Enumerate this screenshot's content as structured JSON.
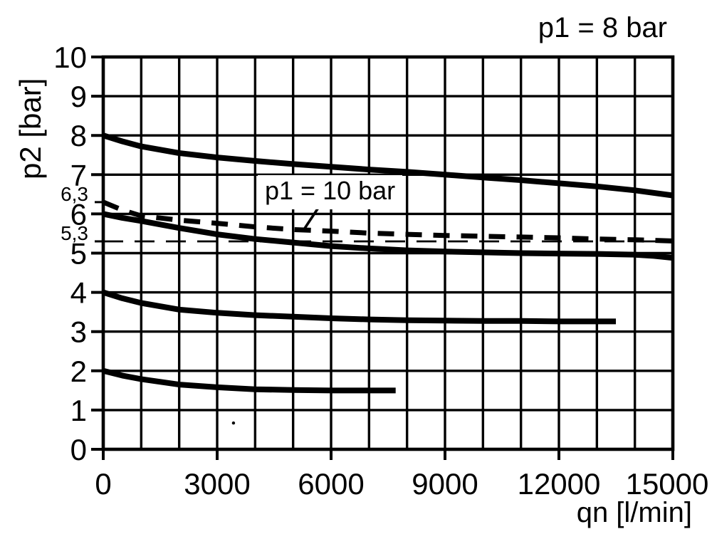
{
  "page": {
    "background": "#ffffff",
    "foreground": "#000000"
  },
  "chart_data": {
    "type": "line",
    "title": "p1 = 8 bar",
    "xlabel": "qn [l/min]",
    "ylabel": "p2 [bar]",
    "xlim": [
      0,
      15000
    ],
    "ylim": [
      0,
      10
    ],
    "grid": "on",
    "legend": "none",
    "x_gridline_step": 1000,
    "y_gridline_step": 1,
    "x_major_ticks": {
      "values": [
        0,
        3000,
        6000,
        9000,
        12000,
        15000
      ],
      "labels": [
        "0",
        "3000",
        "6000",
        "9000",
        "12000",
        "15000"
      ]
    },
    "y_major_ticks": {
      "values": [
        0,
        1,
        2,
        3,
        4,
        5,
        6,
        7,
        8,
        9,
        10
      ],
      "labels": [
        "0",
        "1",
        "2",
        "3",
        "4",
        "5",
        "6",
        "7",
        "8",
        "9",
        "10"
      ]
    },
    "y_special_ticks": [
      {
        "value": 6.3,
        "label": "6,3"
      },
      {
        "value": 5.3,
        "label": "5,3"
      }
    ],
    "reference_line": {
      "p2": 5.3,
      "q_start": 0,
      "q_end": 15000,
      "style": "thin-dashed"
    },
    "annotation": {
      "text": "p1 = 10 bar",
      "center_q": 5960,
      "center_p2": 6.53,
      "leader_from": [
        5700,
        6.21
      ],
      "leader_to": [
        5290,
        5.61
      ]
    },
    "stray_mark": {
      "q": 3430,
      "p2": 0.67
    },
    "series": [
      {
        "id": "curve-p2-8",
        "name": "outlet pressure curve, setting p2 = 8 bar (p1 = 8 bar)",
        "style": "solid-bold",
        "points": [
          [
            0,
            8.0
          ],
          [
            500,
            7.85
          ],
          [
            1000,
            7.72
          ],
          [
            2000,
            7.55
          ],
          [
            3000,
            7.44
          ],
          [
            4000,
            7.35
          ],
          [
            5000,
            7.27
          ],
          [
            6000,
            7.2
          ],
          [
            7000,
            7.13
          ],
          [
            8000,
            7.07
          ],
          [
            9000,
            7.0
          ],
          [
            10000,
            6.93
          ],
          [
            11000,
            6.86
          ],
          [
            12000,
            6.78
          ],
          [
            13000,
            6.7
          ],
          [
            14000,
            6.6
          ],
          [
            15000,
            6.47
          ]
        ]
      },
      {
        "id": "curve-p1-10bar",
        "name": "p1 = 10 bar",
        "style": "dashed-bold",
        "points": [
          [
            0,
            6.3
          ],
          [
            500,
            6.1
          ],
          [
            1000,
            5.95
          ],
          [
            2000,
            5.84
          ],
          [
            3000,
            5.76
          ],
          [
            4000,
            5.67
          ],
          [
            5000,
            5.6
          ],
          [
            6000,
            5.56
          ],
          [
            7000,
            5.51
          ],
          [
            8000,
            5.48
          ],
          [
            9000,
            5.45
          ],
          [
            10000,
            5.43
          ],
          [
            11000,
            5.41
          ],
          [
            12000,
            5.39
          ],
          [
            13000,
            5.36
          ],
          [
            14000,
            5.34
          ],
          [
            15000,
            5.31
          ]
        ]
      },
      {
        "id": "curve-p2-6",
        "name": "outlet pressure curve, setting p2 = 6 bar (p1 = 8 bar)",
        "style": "solid-bold",
        "points": [
          [
            0,
            6.0
          ],
          [
            500,
            5.9
          ],
          [
            1000,
            5.82
          ],
          [
            2000,
            5.64
          ],
          [
            3000,
            5.48
          ],
          [
            4000,
            5.36
          ],
          [
            5000,
            5.27
          ],
          [
            6000,
            5.18
          ],
          [
            7000,
            5.12
          ],
          [
            8000,
            5.07
          ],
          [
            9000,
            5.04
          ],
          [
            10000,
            5.02
          ],
          [
            11000,
            5.0
          ],
          [
            12000,
            4.99
          ],
          [
            13000,
            4.98
          ],
          [
            14000,
            4.96
          ],
          [
            14500,
            4.93
          ],
          [
            15000,
            4.88
          ]
        ]
      },
      {
        "id": "curve-p2-4",
        "name": "outlet pressure curve, setting p2 = 4 bar (p1 = 8 bar)",
        "style": "solid-bold",
        "points": [
          [
            0,
            4.0
          ],
          [
            500,
            3.85
          ],
          [
            1000,
            3.73
          ],
          [
            2000,
            3.56
          ],
          [
            3000,
            3.48
          ],
          [
            4000,
            3.42
          ],
          [
            5000,
            3.38
          ],
          [
            6000,
            3.34
          ],
          [
            7000,
            3.31
          ],
          [
            8000,
            3.29
          ],
          [
            9000,
            3.28
          ],
          [
            10000,
            3.27
          ],
          [
            11000,
            3.27
          ],
          [
            12000,
            3.26
          ],
          [
            13000,
            3.26
          ],
          [
            13500,
            3.26
          ]
        ]
      },
      {
        "id": "curve-p2-2",
        "name": "outlet pressure curve, setting p2 = 2 bar (p1 = 8 bar)",
        "style": "solid-bold",
        "points": [
          [
            0,
            2.0
          ],
          [
            500,
            1.88
          ],
          [
            1000,
            1.79
          ],
          [
            2000,
            1.65
          ],
          [
            3000,
            1.58
          ],
          [
            4000,
            1.53
          ],
          [
            5000,
            1.51
          ],
          [
            6000,
            1.5
          ],
          [
            7000,
            1.5
          ],
          [
            7700,
            1.5
          ]
        ]
      }
    ]
  }
}
